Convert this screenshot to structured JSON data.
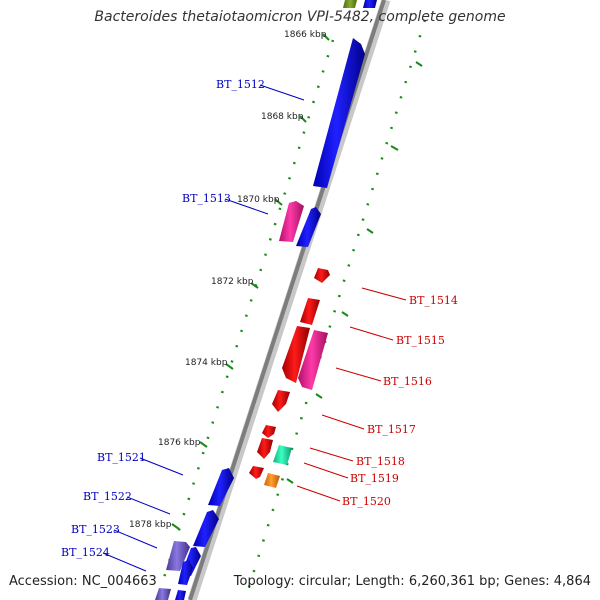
{
  "title": "Bacteroides thetaiotaomicron VPI-5482, complete genome",
  "footer": {
    "accession_label": "Accession:",
    "accession": "NC_004663",
    "topology_label": "Topology:",
    "topology": "circular",
    "length_label": "Length:",
    "length": "6,260,361 bp",
    "genes_label": "Genes:",
    "genes": "4,864"
  },
  "colors": {
    "forward": "#0a0ae6",
    "reverse": "#e60000",
    "magenta": "#e8289a",
    "violet": "#6f5bc8",
    "teal": "#1ee6a8",
    "orange": "#ff8c0a",
    "olive": "#6b8e23",
    "tick": "#1a8a1a",
    "backbone": "#8a8a8a"
  },
  "kbp_ticks": [
    "1866 kbp",
    "1868 kbp",
    "1870 kbp",
    "1872 kbp",
    "1874 kbp",
    "1876 kbp",
    "1878 kbp"
  ],
  "gene_labels": [
    {
      "id": "BT_1512",
      "strand": "forward"
    },
    {
      "id": "BT_1513",
      "strand": "forward"
    },
    {
      "id": "BT_1514",
      "strand": "reverse"
    },
    {
      "id": "BT_1515",
      "strand": "reverse"
    },
    {
      "id": "BT_1516",
      "strand": "reverse"
    },
    {
      "id": "BT_1517",
      "strand": "reverse"
    },
    {
      "id": "BT_1518",
      "strand": "reverse"
    },
    {
      "id": "BT_1519",
      "strand": "reverse"
    },
    {
      "id": "BT_1520",
      "strand": "reverse"
    },
    {
      "id": "BT_1521",
      "strand": "forward"
    },
    {
      "id": "BT_1522",
      "strand": "forward"
    },
    {
      "id": "BT_1523",
      "strand": "forward"
    },
    {
      "id": "BT_1524",
      "strand": "forward"
    }
  ]
}
